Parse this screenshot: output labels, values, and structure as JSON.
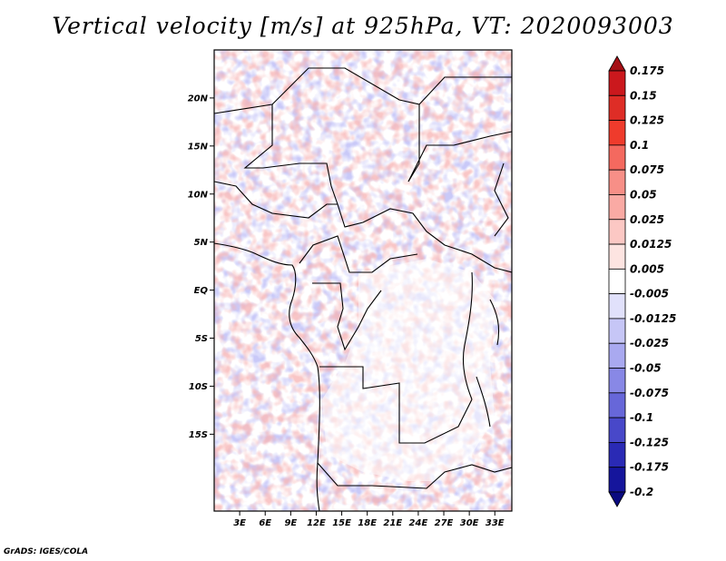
{
  "title": "Vertical velocity [m/s] at 925hPa, VT: 2020093003",
  "credit": "GrADS: IGES/COLA",
  "map": {
    "lon_range": [
      0,
      35
    ],
    "lat_range": [
      -23,
      25
    ],
    "lat_ticks": [
      {
        "lat": 20,
        "label": "20N"
      },
      {
        "lat": 15,
        "label": "15N"
      },
      {
        "lat": 10,
        "label": "10N"
      },
      {
        "lat": 5,
        "label": "5N"
      },
      {
        "lat": 0,
        "label": "EQ"
      },
      {
        "lat": -5,
        "label": "5S"
      },
      {
        "lat": -10,
        "label": "10S"
      },
      {
        "lat": -15,
        "label": "15S"
      }
    ],
    "lon_ticks": [
      {
        "lon": 3,
        "label": "3E"
      },
      {
        "lon": 6,
        "label": "6E"
      },
      {
        "lon": 9,
        "label": "9E"
      },
      {
        "lon": 12,
        "label": "12E"
      },
      {
        "lon": 15,
        "label": "15E"
      },
      {
        "lon": 18,
        "label": "18E"
      },
      {
        "lon": 21,
        "label": "21E"
      },
      {
        "lon": 24,
        "label": "24E"
      },
      {
        "lon": 27,
        "label": "27E"
      },
      {
        "lon": 30,
        "label": "30E"
      },
      {
        "lon": 33,
        "label": "33E"
      }
    ]
  },
  "colorbar": {
    "levels": [
      "0.175",
      "0.15",
      "0.125",
      "0.1",
      "0.075",
      "0.05",
      "0.025",
      "0.0125",
      "0.005",
      "-0.005",
      "-0.0125",
      "-0.025",
      "-0.05",
      "-0.075",
      "-0.1",
      "-0.125",
      "-0.175",
      "-0.2"
    ],
    "colors": [
      "#a50f15",
      "#cb181d",
      "#de2d26",
      "#ef3b2c",
      "#f4695f",
      "#f78f87",
      "#faaaa4",
      "#fcc8c4",
      "#fde4e1",
      "#ffffff",
      "#e1e1fb",
      "#c6c6f6",
      "#a9a9f0",
      "#8888e6",
      "#6767d9",
      "#4848c9",
      "#2a2ab5",
      "#15159c",
      "#0a0a80"
    ]
  },
  "field_legend": {
    "positive": "#f07f7f",
    "negative": "#7f7ff0",
    "neutral": "#ffffff"
  }
}
